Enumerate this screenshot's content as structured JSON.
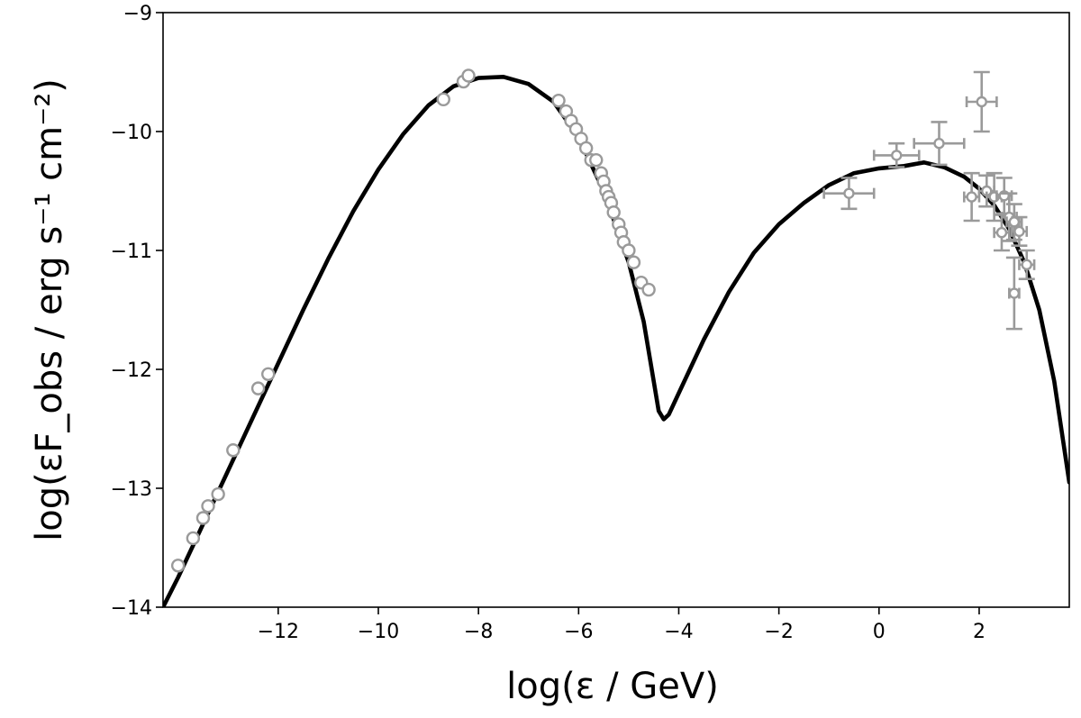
{
  "chart_data": {
    "type": "scatter",
    "xlabel": "log(ε / GeV)",
    "ylabel": "log(εF_obs / erg s⁻¹ cm⁻²)",
    "xlim": [
      -14.3,
      3.8
    ],
    "ylim": [
      -14,
      -9
    ],
    "x_ticks": [
      -12,
      -10,
      -8,
      -6,
      -4,
      -2,
      0,
      2
    ],
    "y_ticks": [
      -14,
      -13,
      -12,
      -11,
      -10,
      -9
    ],
    "x_tick_labels": [
      "−12",
      "−10",
      "−8",
      "−6",
      "−4",
      "−2",
      "0",
      "2"
    ],
    "y_tick_labels": [
      "−14",
      "−13",
      "−12",
      "−11",
      "−10",
      "−9"
    ],
    "grid": false,
    "colors": {
      "model": "#000000",
      "data": "#9a9a9a"
    },
    "series": [
      {
        "kind": "line",
        "x": [
          -14.3,
          -14.0,
          -13.5,
          -13.0,
          -12.5,
          -12.0,
          -11.5,
          -11.0,
          -10.5,
          -10.0,
          -9.5,
          -9.0,
          -8.5,
          -8.0,
          -7.5,
          -7.0,
          -6.5,
          -6.0,
          -5.5,
          -5.0,
          -4.7,
          -4.5,
          -4.4,
          -4.3,
          -4.2,
          -4.0,
          -3.5,
          -3.0,
          -2.5,
          -2.0,
          -1.5,
          -1.0,
          -0.5,
          0.0,
          0.5,
          0.9,
          1.3,
          1.7,
          2.0,
          2.3,
          2.6,
          2.9,
          3.2,
          3.5,
          3.8
        ],
        "y": [
          -14.0,
          -13.75,
          -13.3,
          -12.85,
          -12.4,
          -11.95,
          -11.5,
          -11.07,
          -10.67,
          -10.32,
          -10.02,
          -9.78,
          -9.62,
          -9.55,
          -9.54,
          -9.6,
          -9.75,
          -10.05,
          -10.5,
          -11.1,
          -11.6,
          -12.1,
          -12.35,
          -12.42,
          -12.38,
          -12.2,
          -11.75,
          -11.35,
          -11.02,
          -10.78,
          -10.6,
          -10.45,
          -10.35,
          -10.31,
          -10.29,
          -10.26,
          -10.3,
          -10.38,
          -10.48,
          -10.62,
          -10.82,
          -11.1,
          -11.5,
          -12.1,
          -12.95
        ]
      },
      {
        "kind": "points",
        "x": [
          -14.0,
          -13.7,
          -13.5,
          -13.4,
          -13.2,
          -12.9,
          -12.4,
          -12.2,
          -8.7,
          -8.3,
          -8.2,
          -6.4,
          -6.25,
          -6.15,
          -6.05,
          -5.95,
          -5.85,
          -5.75,
          -5.65,
          -5.55,
          -5.5,
          -5.45,
          -5.4,
          -5.35,
          -5.3,
          -5.2,
          -5.15,
          -5.1,
          -5.0,
          -4.9,
          -4.75,
          -4.6
        ],
        "y": [
          -13.65,
          -13.42,
          -13.25,
          -13.15,
          -13.05,
          -12.68,
          -12.16,
          -12.04,
          -9.73,
          -9.58,
          -9.53,
          -9.74,
          -9.83,
          -9.91,
          -9.98,
          -10.06,
          -10.14,
          -10.24,
          -10.24,
          -10.35,
          -10.42,
          -10.5,
          -10.55,
          -10.6,
          -10.68,
          -10.78,
          -10.85,
          -10.93,
          -11.0,
          -11.1,
          -11.27,
          -11.33
        ]
      },
      {
        "kind": "errorbars",
        "x": [
          -0.6,
          0.35,
          1.2,
          2.05,
          1.85,
          2.15,
          2.3,
          2.5,
          2.45,
          2.6,
          2.7,
          2.8,
          2.95,
          2.7
        ],
        "y": [
          -10.52,
          -10.2,
          -10.1,
          -9.75,
          -10.55,
          -10.5,
          -10.55,
          -10.54,
          -10.85,
          -10.72,
          -10.76,
          -10.84,
          -11.12,
          -11.36
        ],
        "xerr": [
          0.5,
          0.45,
          0.5,
          0.3,
          0.15,
          0.15,
          0.15,
          0.15,
          0.15,
          0.15,
          0.15,
          0.15,
          0.15,
          0.1
        ],
        "yerr": [
          0.13,
          0.1,
          0.18,
          0.25,
          0.2,
          0.13,
          0.2,
          0.15,
          0.15,
          0.2,
          0.15,
          0.12,
          0.12,
          0.3
        ]
      }
    ]
  }
}
